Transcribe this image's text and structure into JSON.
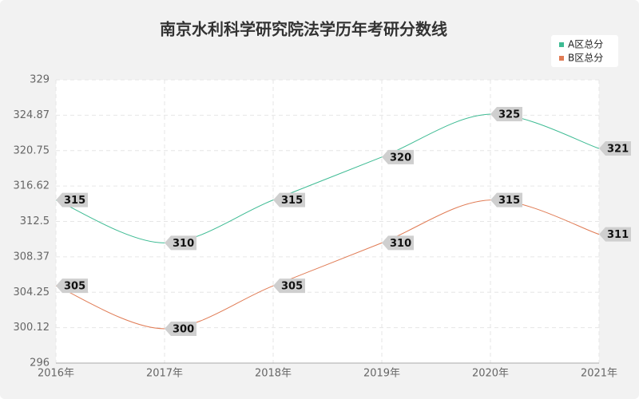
{
  "chart_data": {
    "type": "line",
    "title": "南京水利科学研究院法学历年考研分数线",
    "categories": [
      "2016年",
      "2017年",
      "2018年",
      "2019年",
      "2020年",
      "2021年"
    ],
    "series": [
      {
        "name": "A区总分",
        "color": "#3dbb93",
        "values": [
          315,
          310,
          315,
          320,
          325,
          321
        ]
      },
      {
        "name": "B区总分",
        "color": "#e07b54",
        "values": [
          305,
          300,
          305,
          310,
          315,
          311
        ]
      }
    ],
    "ylim": [
      296,
      329
    ],
    "yticks": [
      296,
      300.12,
      304.25,
      308.37,
      312.5,
      316.62,
      320.75,
      324.87,
      329
    ],
    "grid": true,
    "legend": "top-right"
  }
}
